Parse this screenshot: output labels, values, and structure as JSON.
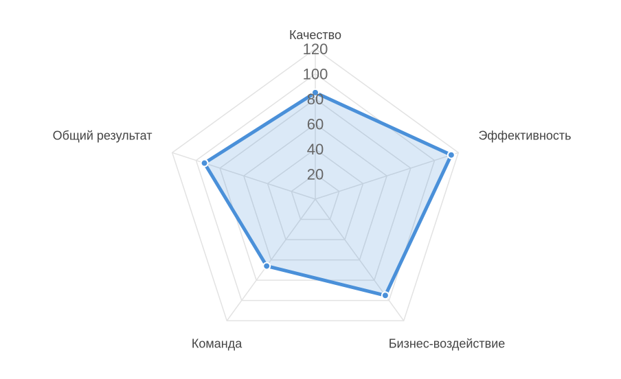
{
  "chart_data": {
    "type": "radar",
    "categories": [
      "Качество",
      "Эффективность",
      "Бизнес-воздействие",
      "Команда",
      "Общий результат"
    ],
    "series": [
      {
        "color": "#4a90d9",
        "values": [
          85,
          114,
          95,
          66,
          93
        ]
      }
    ],
    "rlim": [
      0,
      120
    ],
    "rticks": [
      20,
      40,
      60,
      80,
      100,
      120
    ],
    "grid": true
  }
}
